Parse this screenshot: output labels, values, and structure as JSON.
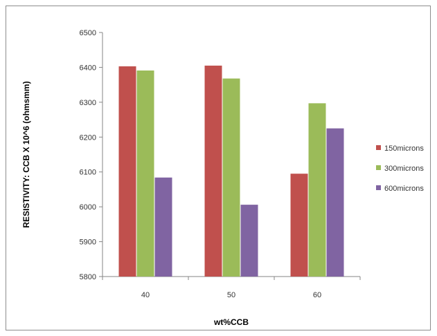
{
  "chart_data": {
    "type": "bar",
    "categories": [
      "40",
      "50",
      "60"
    ],
    "series": [
      {
        "name": "150microns",
        "values": [
          6403,
          6405,
          6095
        ],
        "color": "#c0504d"
      },
      {
        "name": "300microns",
        "values": [
          6391,
          6368,
          6297
        ],
        "color": "#9bbb59"
      },
      {
        "name": "600microns",
        "values": [
          6084,
          6006,
          6225
        ],
        "color": "#8064a2"
      }
    ],
    "title": "",
    "xlabel": "wt%CCB",
    "ylabel": "RESISTIVITY: CCB X 10^6 (ohmsmm)",
    "ylim": [
      5800,
      6500
    ],
    "yticks": [
      5800,
      5900,
      6000,
      6100,
      6200,
      6300,
      6400,
      6500
    ],
    "grid": false,
    "legend": "right"
  }
}
